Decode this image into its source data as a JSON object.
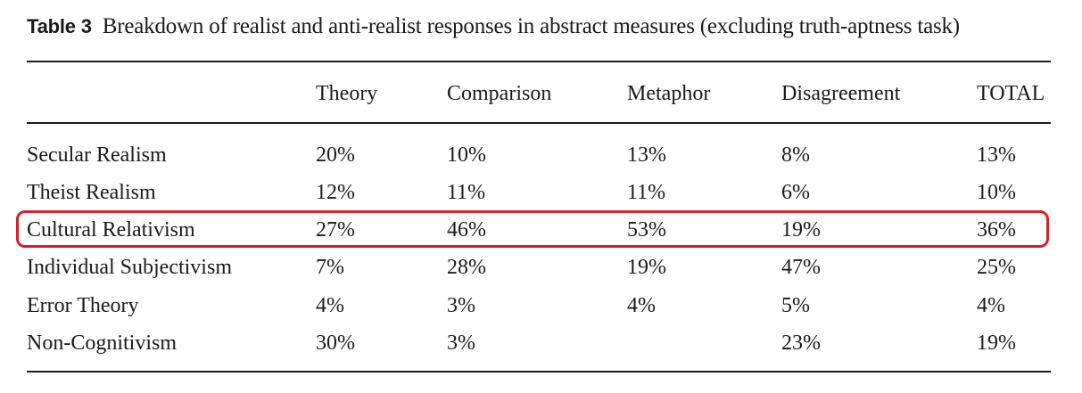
{
  "table": {
    "label": "Table 3",
    "caption": "Breakdown of realist and anti-realist responses in abstract measures (excluding truth-aptness task)",
    "columns": [
      "",
      "Theory",
      "Comparison",
      "Metaphor",
      "Disagreement",
      "TOTAL"
    ],
    "rows": [
      [
        "Secular Realism",
        "20%",
        "10%",
        "13%",
        "8%",
        "13%"
      ],
      [
        "Theist Realism",
        "12%",
        "11%",
        "11%",
        "6%",
        "10%"
      ],
      [
        "Cultural Relativism",
        "27%",
        "46%",
        "53%",
        "19%",
        "36%"
      ],
      [
        "Individual Subjectivism",
        "7%",
        "28%",
        "19%",
        "47%",
        "25%"
      ],
      [
        "Error Theory",
        "4%",
        "3%",
        "4%",
        "5%",
        "4%"
      ],
      [
        "Non-Cognitivism",
        "30%",
        "3%",
        "",
        "23%",
        "19%"
      ]
    ],
    "highlight": {
      "row_label": "Cultural Relativism",
      "color": "#d7202a"
    }
  }
}
